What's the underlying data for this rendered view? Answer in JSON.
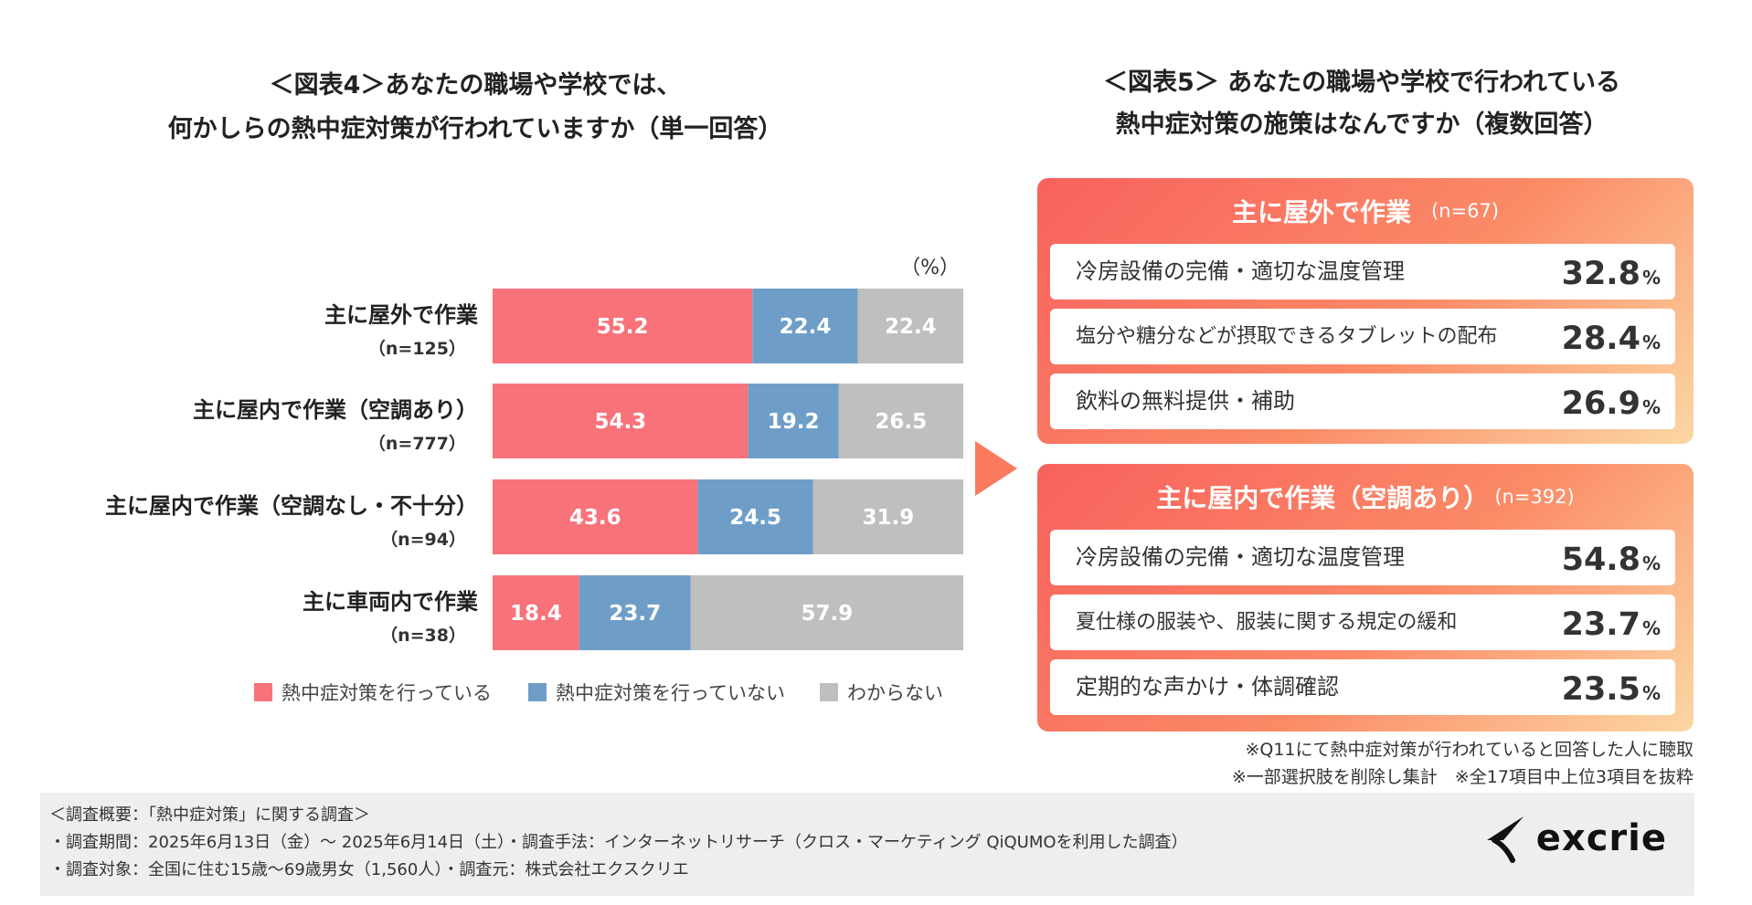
{
  "figure4": {
    "title_line1": "＜図表4＞あなたの職場や学校では、",
    "title_line2": "何かしらの熱中症対策が行われていますか（単一回答）"
  },
  "figure5": {
    "title_line1": "＜図表5＞ あなたの職場や学校で行われている",
    "title_line2": "熱中症対策の施策はなんですか（複数回答）",
    "panels": [
      {
        "name": "主に屋外で作業",
        "n": "(n=67)",
        "items": [
          {
            "label": "冷房設備の完備・適切な温度管理",
            "value": "32.8",
            "unit": "%"
          },
          {
            "label": "塩分や糖分などが摂取できるタブレットの配布",
            "value": "28.4",
            "unit": "%"
          },
          {
            "label": "飲料の無料提供・補助",
            "value": "26.9",
            "unit": "%"
          }
        ]
      },
      {
        "name": "主に屋内で作業（空調あり）",
        "n": "(n=392)",
        "items": [
          {
            "label": "冷房設備の完備・適切な温度管理",
            "value": "54.8",
            "unit": "%"
          },
          {
            "label": "夏仕様の服装や、服装に関する規定の緩和",
            "value": "23.7",
            "unit": "%"
          },
          {
            "label": "定期的な声かけ・体調確認",
            "value": "23.5",
            "unit": "%"
          }
        ]
      }
    ]
  },
  "chart_data": {
    "type": "bar",
    "stacked": true,
    "orientation": "horizontal",
    "unit_label": "（%）",
    "categories": [
      {
        "label": "主に屋外で作業",
        "n": "（n=125）"
      },
      {
        "label": "主に屋内で作業（空調あり）",
        "n": "（n=777）"
      },
      {
        "label": "主に屋内で作業（空調なし・不十分）",
        "n": "（n=94）"
      },
      {
        "label": "主に車両内で作業",
        "n": "（n=38）"
      }
    ],
    "series": [
      {
        "name": "熱中症対策を行っている",
        "color": "#f8727a",
        "values": [
          55.2,
          54.3,
          43.6,
          18.4
        ]
      },
      {
        "name": "熱中症対策を行っていない",
        "color": "#6e9ec8",
        "values": [
          22.4,
          19.2,
          24.5,
          23.7
        ]
      },
      {
        "name": "わからない",
        "color": "#bfbfbf",
        "values": [
          22.4,
          26.5,
          31.9,
          57.9
        ]
      }
    ],
    "xlim": [
      0,
      100
    ]
  },
  "notes": [
    "※Q11にて熱中症対策が行われていると回答した人に聴取",
    "※一部選択肢を削除し集計　※全17項目中上位3項目を抜粋"
  ],
  "footer": {
    "line1": "＜調査概要：「熱中症対策」に関する調査＞",
    "line2": "・調査期間：2025年6月13日（金）～ 2025年6月14日（土）・調査手法：インターネットリサーチ（クロス・マーケティング QiQUMOを利用した調査）",
    "line3": "・調査対象：全国に住む15歳～69歳男女（1,560人）・調査元：株式会社エクスクリエ",
    "logo_text": "excrie"
  }
}
